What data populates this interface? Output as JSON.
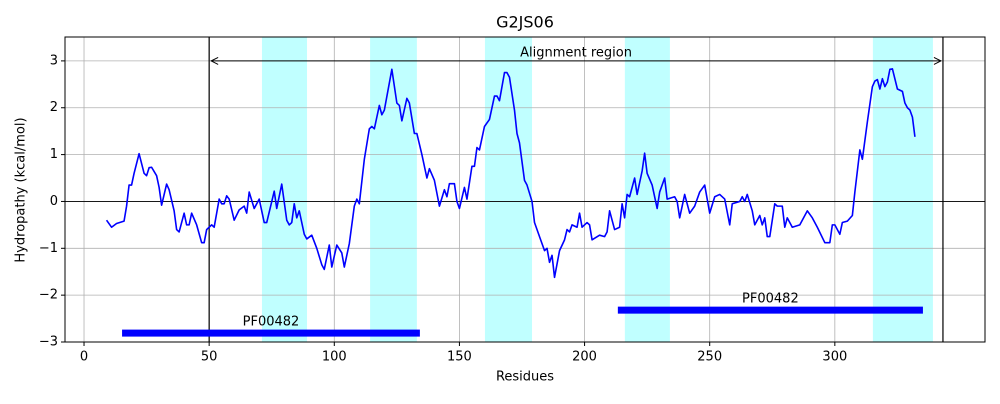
{
  "chart_data": {
    "type": "line",
    "title": "G2JS06",
    "xlabel": "Residues",
    "ylabel": "Hydropathy (kcal/mol)",
    "x": [
      9,
      11,
      13,
      16,
      17,
      18,
      19,
      20,
      22,
      24,
      25,
      26,
      27,
      29,
      30,
      31,
      33,
      34,
      36,
      37,
      38,
      40,
      41,
      42,
      43,
      45,
      47,
      48,
      49,
      51,
      52,
      54,
      55,
      56,
      57,
      58,
      60,
      62,
      64,
      65,
      66,
      68,
      70,
      72,
      73,
      76,
      77,
      79,
      81,
      82,
      83,
      84,
      85,
      86,
      88,
      89,
      91,
      93,
      95,
      96,
      98,
      99,
      101,
      103,
      104,
      106,
      108,
      109,
      110,
      112,
      114,
      115,
      116,
      118,
      119,
      120,
      123,
      125,
      126,
      127,
      129,
      130,
      132,
      133,
      135,
      137,
      138,
      140,
      142,
      144,
      145,
      146,
      148,
      149,
      150,
      152,
      153,
      155,
      156,
      157,
      158,
      160,
      162,
      164,
      165,
      166,
      168,
      169,
      170,
      172,
      173,
      174,
      176,
      177,
      179,
      180,
      182,
      184,
      185,
      186,
      187,
      188,
      190,
      192,
      193,
      194,
      195,
      197,
      198,
      199,
      201,
      202,
      203,
      206,
      208,
      209,
      210,
      212,
      214,
      215,
      216,
      217,
      218,
      220,
      221,
      223,
      224,
      225,
      227,
      229,
      230,
      232,
      233,
      236,
      237,
      238,
      240,
      242,
      244,
      246,
      248,
      249,
      250,
      252,
      254,
      256,
      258,
      259,
      262,
      263,
      264,
      265,
      267,
      268,
      270,
      271,
      272,
      273,
      274,
      276,
      277,
      279,
      280,
      281,
      283,
      286,
      289,
      291,
      293,
      296,
      298,
      299,
      300,
      302,
      303,
      305,
      307,
      308,
      310,
      311,
      313,
      315,
      316,
      317,
      318,
      319,
      320,
      321,
      322,
      323,
      325,
      327,
      328,
      329,
      330,
      331,
      332
    ],
    "values": [
      -0.4,
      -0.55,
      -0.47,
      -0.42,
      -0.1,
      0.35,
      0.35,
      0.6,
      1.02,
      0.6,
      0.55,
      0.72,
      0.73,
      0.55,
      0.3,
      -0.08,
      0.37,
      0.25,
      -0.2,
      -0.6,
      -0.65,
      -0.25,
      -0.5,
      -0.5,
      -0.25,
      -0.5,
      -0.88,
      -0.88,
      -0.6,
      -0.5,
      -0.55,
      0.05,
      -0.05,
      -0.05,
      0.12,
      0.05,
      -0.4,
      -0.18,
      -0.1,
      -0.25,
      0.2,
      -0.15,
      0.05,
      -0.45,
      -0.45,
      0.22,
      -0.15,
      0.37,
      -0.4,
      -0.5,
      -0.45,
      -0.05,
      -0.35,
      -0.2,
      -0.7,
      -0.8,
      -0.72,
      -1.0,
      -1.35,
      -1.45,
      -0.93,
      -1.4,
      -0.93,
      -1.1,
      -1.4,
      -0.9,
      -0.1,
      0.05,
      -0.05,
      0.9,
      1.55,
      1.6,
      1.55,
      2.05,
      1.85,
      1.95,
      2.82,
      2.1,
      2.05,
      1.72,
      2.2,
      2.1,
      1.45,
      1.45,
      1.0,
      0.5,
      0.7,
      0.45,
      -0.1,
      0.25,
      0.1,
      0.38,
      0.38,
      0.0,
      -0.15,
      0.3,
      0.05,
      0.75,
      0.75,
      1.15,
      1.1,
      1.6,
      1.75,
      2.25,
      2.25,
      2.15,
      2.75,
      2.75,
      2.65,
      1.95,
      1.45,
      1.25,
      0.45,
      0.35,
      0.0,
      -0.45,
      -0.75,
      -1.05,
      -1.0,
      -1.3,
      -1.15,
      -1.62,
      -1.05,
      -0.82,
      -0.6,
      -0.65,
      -0.5,
      -0.55,
      -0.25,
      -0.55,
      -0.45,
      -0.5,
      -0.82,
      -0.72,
      -0.75,
      -0.65,
      -0.2,
      -0.6,
      -0.55,
      -0.05,
      -0.35,
      0.15,
      0.1,
      0.5,
      0.15,
      0.65,
      1.03,
      0.6,
      0.35,
      -0.15,
      0.2,
      0.5,
      0.05,
      0.1,
      0.0,
      -0.35,
      0.15,
      -0.25,
      -0.1,
      0.2,
      0.35,
      0.05,
      -0.25,
      0.1,
      0.15,
      0.05,
      -0.5,
      -0.05,
      0.0,
      0.1,
      0.0,
      0.15,
      -0.2,
      -0.5,
      -0.3,
      -0.5,
      -0.35,
      -0.75,
      -0.75,
      -0.05,
      -0.1,
      -0.1,
      -0.55,
      -0.35,
      -0.55,
      -0.5,
      -0.2,
      -0.35,
      -0.55,
      -0.88,
      -0.88,
      -0.5,
      -0.5,
      -0.7,
      -0.45,
      -0.42,
      -0.3,
      0.2,
      1.1,
      0.9,
      1.7,
      2.45,
      2.57,
      2.6,
      2.4,
      2.62,
      2.45,
      2.55,
      2.82,
      2.83,
      2.4,
      2.35,
      2.1,
      2.0,
      1.95,
      1.8,
      1.38
    ],
    "color": "#0000ff",
    "xlim": [
      -7.6,
      360
    ],
    "ylim": [
      -3,
      3.51
    ],
    "xticks": [
      0,
      50,
      100,
      150,
      200,
      250,
      300
    ],
    "yticks": [
      {
        "value": -3,
        "label": "−3"
      },
      {
        "value": -2,
        "label": "−2"
      },
      {
        "value": -1,
        "label": "−1"
      },
      0,
      1,
      2,
      3
    ],
    "grid": true,
    "hline": 0,
    "highlights": [
      [
        71.1,
        89.1
      ],
      [
        114.3,
        133.0
      ],
      [
        160.2,
        179.0
      ],
      [
        216.1,
        234.1
      ],
      [
        315.2,
        339.2
      ]
    ],
    "highlight_color": "#c0ffff",
    "alignment": {
      "label": "Alignment region",
      "start": 50,
      "end": 343.2,
      "y": 3
    },
    "domains": [
      {
        "label": "PF00482",
        "start": 15.2,
        "end": 134.2,
        "y": -2.81
      },
      {
        "label": "PF00482",
        "start": 213.3,
        "end": 335.2,
        "y": -2.32
      }
    ]
  }
}
